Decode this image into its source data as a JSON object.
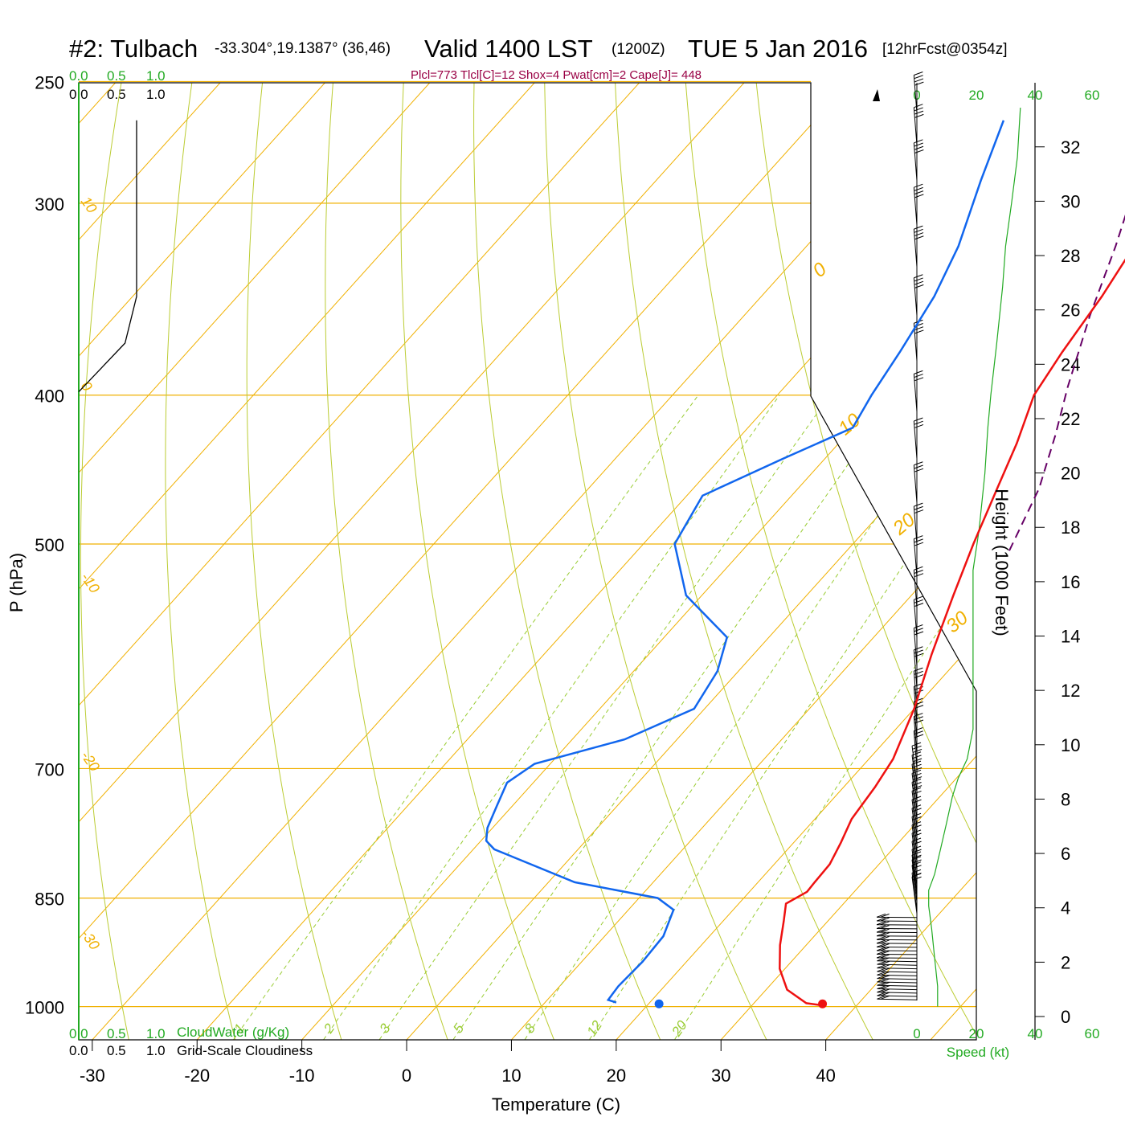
{
  "header": {
    "station": "#2: Tulbach",
    "location": "-33.304°,19.1387° (36,46)",
    "valid": "Valid 1400 LST",
    "zulu": "(1200Z)",
    "date": "TUE 5 Jan 2016",
    "forecast": "[12hrFcst@0354z]",
    "params": "Plcl=773 Tlcl[C]=12 Shox=4 Pwat[cm]=2 Cape[J]= 448"
  },
  "legend": {
    "cloudwater_scale": [
      "0.0",
      "0.5",
      "1.0"
    ],
    "cloudiness_scale": [
      "0.0",
      "0.5",
      "1.0"
    ],
    "cloudwater_label": "CloudWater (g/Kg)",
    "cloudiness_label": "Grid-Scale Cloudiness",
    "speed_label": "Speed (kt)",
    "speed_ticks": [
      "0",
      "20",
      "40",
      "60"
    ]
  },
  "colors": {
    "temperature": "#ee1111",
    "dewpoint": "#1166ee",
    "parcel": "#660066",
    "isotherm": "#f0b000",
    "dry_adiabat": "#bbcc33",
    "mixing_ratio": "#99cc33",
    "green_text": "#22aa22",
    "params_text": "#990044"
  },
  "chart_data": {
    "type": "line",
    "title": "#2: Tulbach -33.304°,19.1387° (36,46) Valid 1400 LST (1200Z) TUE 5 Jan 2016 [12hrFcst@0354z]",
    "xlabel": "Temperature (C)",
    "ylabel": "P (hPa)",
    "y2label": "Height (1000 Feet)",
    "x_ticks": [
      -30,
      -20,
      -10,
      0,
      10,
      20,
      30,
      40
    ],
    "pressure_ticks": [
      250,
      300,
      400,
      500,
      700,
      850,
      1000
    ],
    "height_ticks_kft": [
      0,
      2,
      4,
      6,
      8,
      10,
      12,
      14,
      16,
      18,
      20,
      22,
      24,
      26,
      28,
      30,
      32
    ],
    "isotherm_labels": [
      10,
      0,
      -10,
      -20,
      -30,
      0,
      10,
      20,
      30
    ],
    "mixing_ratio_labels": [
      "1",
      "2",
      "3",
      "5",
      "8",
      "12",
      "20"
    ],
    "ylim": [
      1000,
      250
    ],
    "yscale": "log",
    "series": [
      {
        "name": "Temperature",
        "values": [
          [
            36.6,
            998
          ],
          [
            35.0,
            995
          ],
          [
            32.0,
            975
          ],
          [
            29.5,
            945
          ],
          [
            27.5,
            912
          ],
          [
            25.8,
            880
          ],
          [
            24.5,
            857
          ],
          [
            25.5,
            842
          ],
          [
            25.4,
            830
          ],
          [
            25.3,
            808
          ],
          [
            24.5,
            782
          ],
          [
            23.5,
            755
          ],
          [
            23.0,
            720
          ],
          [
            22.3,
            690
          ],
          [
            20.0,
            640
          ],
          [
            17.0,
            590
          ],
          [
            14.0,
            540
          ],
          [
            11.5,
            500
          ],
          [
            9.0,
            460
          ],
          [
            7.0,
            430
          ],
          [
            4.5,
            400
          ],
          [
            3.5,
            375
          ],
          [
            2.5,
            345
          ],
          [
            1.0,
            315
          ],
          [
            -1.0,
            290
          ],
          [
            -3.5,
            265
          ]
        ]
      },
      {
        "name": "Dewpoint",
        "values": [
          [
            16.8,
            994
          ],
          [
            15.8,
            990
          ],
          [
            15.6,
            970
          ],
          [
            15.8,
            935
          ],
          [
            15.6,
            900
          ],
          [
            14.3,
            865
          ],
          [
            11.8,
            850
          ],
          [
            2.5,
            830
          ],
          [
            -8.0,
            790
          ],
          [
            -9.5,
            780
          ],
          [
            -10.5,
            765
          ],
          [
            -11.5,
            740
          ],
          [
            -12.5,
            715
          ],
          [
            -11.5,
            695
          ],
          [
            -5.0,
            670
          ],
          [
            -1.0,
            640
          ],
          [
            -2.0,
            605
          ],
          [
            -4.0,
            575
          ],
          [
            -11.5,
            540
          ],
          [
            -17.0,
            500
          ],
          [
            -18.5,
            465
          ],
          [
            -14.0,
            440
          ],
          [
            -10.0,
            420
          ],
          [
            -11.0,
            400
          ],
          [
            -12.0,
            375
          ],
          [
            -13.5,
            345
          ],
          [
            -15.5,
            320
          ],
          [
            -19.0,
            290
          ],
          [
            -22.0,
            265
          ]
        ]
      },
      {
        "name": "Parcel",
        "values": [
          [
            15.5,
            505
          ],
          [
            13.0,
            460
          ],
          [
            10.0,
            425
          ],
          [
            7.0,
            395
          ],
          [
            3.0,
            355
          ],
          [
            -0.5,
            320
          ],
          [
            -3.5,
            295
          ],
          [
            -7.0,
            270
          ],
          [
            -9.0,
            260
          ]
        ]
      }
    ],
    "surface_points": {
      "temperature_c": 36.6,
      "dewpoint_c": 21.0
    },
    "cloudiness_profile": [
      [
        0.75,
        265
      ],
      [
        0.75,
        345
      ],
      [
        0.6,
        370
      ],
      [
        0.0,
        398
      ]
    ],
    "wind_speed_profile_kt": [
      [
        7,
        1000
      ],
      [
        7,
        970
      ],
      [
        6,
        930
      ],
      [
        5,
        890
      ],
      [
        4,
        860
      ],
      [
        4,
        840
      ],
      [
        6,
        820
      ],
      [
        8,
        790
      ],
      [
        10,
        760
      ],
      [
        12,
        730
      ],
      [
        14,
        710
      ],
      [
        17,
        690
      ],
      [
        19,
        660
      ],
      [
        19,
        630
      ],
      [
        19,
        600
      ],
      [
        19,
        560
      ],
      [
        19,
        520
      ],
      [
        21,
        490
      ],
      [
        23,
        450
      ],
      [
        24,
        420
      ],
      [
        25,
        400
      ],
      [
        27,
        370
      ],
      [
        29,
        340
      ],
      [
        30,
        320
      ],
      [
        32,
        300
      ],
      [
        34,
        280
      ],
      [
        35,
        260
      ]
    ],
    "wind_barb_levels_hpa": [
      990,
      985,
      980,
      975,
      970,
      965,
      960,
      955,
      950,
      945,
      940,
      935,
      930,
      925,
      920,
      915,
      910,
      905,
      900,
      895,
      890,
      885,
      880,
      875,
      870,
      865,
      855,
      848,
      842,
      835,
      825,
      815,
      805,
      795,
      785,
      775,
      765,
      755,
      745,
      735,
      725,
      715,
      700,
      685,
      670,
      655,
      640,
      620,
      600,
      575,
      550,
      525,
      500,
      470,
      440,
      410,
      380,
      355,
      330,
      310,
      290,
      275,
      262
    ]
  }
}
